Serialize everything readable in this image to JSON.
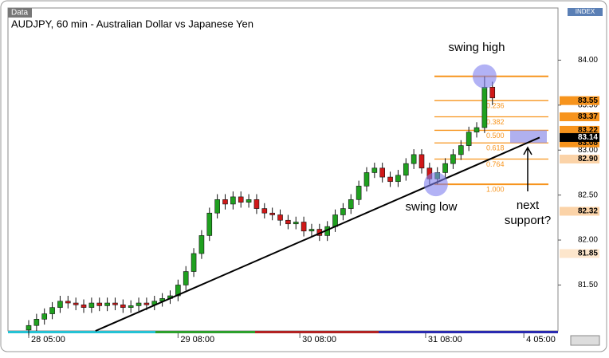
{
  "chart_data": {
    "type": "candlestick",
    "title": "AUDJPY, 60 min - Australian Dollar vs Japanese Yen",
    "data_tag": "Data",
    "index_tag": "INDEX",
    "open": [
      81.0,
      81.05,
      81.12,
      81.18,
      81.25,
      81.32,
      81.3,
      81.28,
      81.25,
      81.3,
      81.27,
      81.3,
      81.28,
      81.25,
      81.27,
      81.3,
      81.28,
      81.32,
      81.35,
      81.38,
      81.5,
      81.65,
      81.85,
      82.05,
      82.3,
      82.45,
      82.4,
      82.48,
      82.42,
      82.45,
      82.35,
      82.3,
      82.28,
      82.22,
      82.18,
      82.2,
      82.1,
      82.12,
      82.05,
      82.15,
      82.28,
      82.35,
      82.45,
      82.6,
      82.75,
      82.8,
      82.7,
      82.65,
      82.72,
      82.85,
      82.95,
      82.8,
      82.68,
      82.75,
      82.85,
      82.95,
      83.05,
      83.2,
      83.25,
      83.7
    ],
    "high": [
      81.11,
      81.18,
      81.24,
      81.31,
      81.38,
      81.38,
      81.36,
      81.34,
      81.36,
      81.36,
      81.36,
      81.36,
      81.34,
      81.33,
      81.36,
      81.36,
      81.38,
      81.41,
      81.44,
      81.56,
      81.71,
      81.91,
      82.11,
      82.36,
      82.51,
      82.51,
      82.54,
      82.54,
      82.51,
      82.51,
      82.41,
      82.36,
      82.34,
      82.28,
      82.26,
      82.26,
      82.18,
      82.18,
      82.21,
      82.34,
      82.41,
      82.51,
      82.66,
      82.81,
      82.86,
      82.86,
      82.76,
      82.78,
      82.91,
      83.01,
      83.01,
      82.86,
      82.81,
      82.91,
      83.01,
      83.11,
      83.26,
      83.31,
      83.82,
      83.76
    ],
    "low": [
      80.94,
      80.99,
      81.06,
      81.12,
      81.19,
      81.24,
      81.22,
      81.19,
      81.19,
      81.21,
      81.21,
      81.22,
      81.19,
      81.19,
      81.21,
      81.22,
      81.22,
      81.26,
      81.29,
      81.32,
      81.44,
      81.59,
      81.79,
      81.99,
      82.24,
      82.34,
      82.34,
      82.36,
      82.36,
      82.29,
      82.24,
      82.22,
      82.16,
      82.12,
      82.12,
      82.04,
      82.04,
      81.99,
      81.99,
      82.09,
      82.22,
      82.29,
      82.39,
      82.54,
      82.69,
      82.64,
      82.59,
      82.59,
      82.66,
      82.79,
      82.74,
      82.62,
      82.62,
      82.69,
      82.79,
      82.89,
      82.99,
      83.14,
      83.19,
      83.5
    ],
    "close": [
      81.05,
      81.12,
      81.18,
      81.25,
      81.32,
      81.3,
      81.28,
      81.25,
      81.3,
      81.27,
      81.3,
      81.28,
      81.25,
      81.27,
      81.3,
      81.28,
      81.32,
      81.35,
      81.38,
      81.5,
      81.65,
      81.85,
      82.05,
      82.3,
      82.45,
      82.4,
      82.48,
      82.42,
      82.45,
      82.35,
      82.3,
      82.28,
      82.22,
      82.18,
      82.2,
      82.1,
      82.12,
      82.05,
      82.15,
      82.28,
      82.35,
      82.45,
      82.6,
      82.75,
      82.8,
      82.7,
      82.65,
      82.72,
      82.85,
      82.95,
      82.8,
      82.68,
      82.75,
      82.85,
      82.95,
      83.05,
      83.2,
      83.25,
      83.7,
      83.58
    ],
    "up_color": "#1fa01f",
    "down_color": "#d01818",
    "xlabels": [
      {
        "index": 0,
        "label": "28 05:00"
      },
      {
        "index": 19,
        "label": "29 08:00"
      },
      {
        "index": 34.5,
        "label": "30 08:00"
      },
      {
        "index": 50.5,
        "label": "31 08:00"
      },
      {
        "index": 63,
        "label": "4 05:00"
      }
    ],
    "ylim": [
      80.99,
      84.58
    ],
    "yticks": [
      {
        "value": 81.5,
        "label": "81.50"
      },
      {
        "value": 82,
        "label": "82.00"
      },
      {
        "value": 82.5,
        "label": "82.50"
      },
      {
        "value": 83,
        "label": "83.00"
      },
      {
        "value": 83.5,
        "label": "83.50"
      },
      {
        "value": 84,
        "label": "84.00"
      }
    ],
    "price_tags": [
      {
        "value": 83.55,
        "label": "83.55",
        "color": "#f7941d"
      },
      {
        "value": 83.37,
        "label": "83.37",
        "color": "#f7941d"
      },
      {
        "value": 83.22,
        "label": "83.22",
        "color": "#f7941d"
      },
      {
        "value": 83.08,
        "label": "83.08",
        "color": "#f7941d"
      },
      {
        "value": 83.14,
        "label": "83.14",
        "color": "#000000"
      },
      {
        "value": 82.9,
        "label": "82.90",
        "color": "#fbd3a8"
      },
      {
        "value": 82.32,
        "label": "82.32",
        "color": "#fbd3a8"
      },
      {
        "value": 81.85,
        "label": "81.85",
        "color": "#fde6cc"
      }
    ],
    "fib": {
      "color": "#f7941d",
      "levels": [
        83.82,
        83.55,
        83.37,
        83.22,
        83.08,
        82.9,
        82.62
      ],
      "labels": [
        null,
        "0.236",
        "0.382",
        "0.500",
        "0.618",
        "0.764",
        "1.000"
      ]
    },
    "trendline": {
      "x": [
        8.5,
        65
      ],
      "values": [
        80.99,
        83.14
      ]
    },
    "annotations": {
      "swing_high": "swing high",
      "swing_low": "swing low",
      "next": "next",
      "support": "support?"
    }
  }
}
